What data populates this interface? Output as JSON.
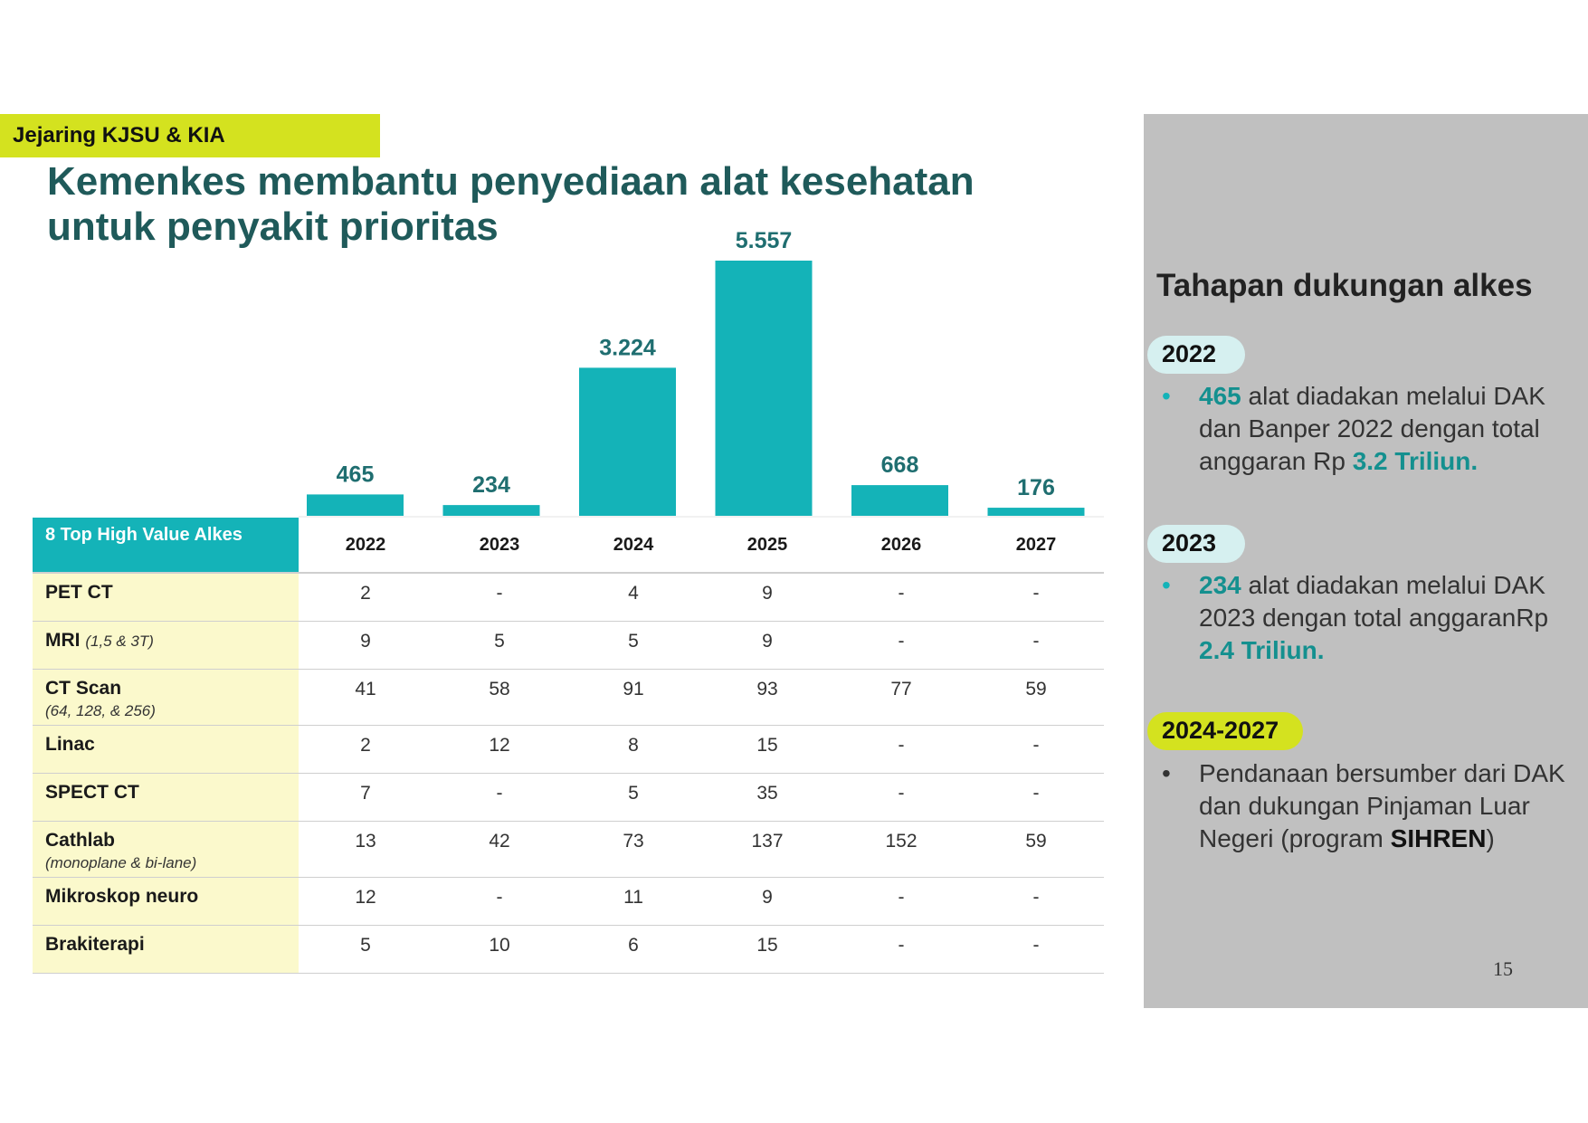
{
  "header": {
    "tag": "Jejaring KJSU & KIA",
    "title_line1": "Kemenkes membantu penyediaan alat kesehatan",
    "title_line2": "untuk penyakit prioritas"
  },
  "colors": {
    "bar": "#14b3b8",
    "accent_lime": "#d4e21f",
    "title_teal": "#1f5a5a",
    "side_panel": "#c0c0c0"
  },
  "chart_data": {
    "type": "bar",
    "categories": [
      "2022",
      "2023",
      "2024",
      "2025",
      "2026",
      "2027"
    ],
    "values": [
      465,
      234,
      3224,
      5557,
      668,
      176
    ],
    "value_labels": [
      "465",
      "234",
      "3.224",
      "5.557",
      "668",
      "176"
    ],
    "title": "",
    "xlabel": "",
    "ylabel": "",
    "ylim": [
      0,
      5557
    ],
    "grid": false,
    "legend": "none"
  },
  "table": {
    "corner": "8 Top High Value Alkes",
    "years": [
      "2022",
      "2023",
      "2024",
      "2025",
      "2026",
      "2027"
    ],
    "rows": [
      {
        "name": "PET CT",
        "sub": "",
        "values": [
          "2",
          "-",
          "4",
          "9",
          "-",
          "-"
        ]
      },
      {
        "name": "MRI",
        "sub": "(1,5 & 3T)",
        "values": [
          "9",
          "5",
          "5",
          "9",
          "-",
          "-"
        ]
      },
      {
        "name": "CT Scan",
        "sub": "(64, 128, & 256)",
        "values": [
          "41",
          "58",
          "91",
          "93",
          "77",
          "59"
        ]
      },
      {
        "name": "Linac",
        "sub": "",
        "values": [
          "2",
          "12",
          "8",
          "15",
          "-",
          "-"
        ]
      },
      {
        "name": "SPECT CT",
        "sub": "",
        "values": [
          "7",
          "-",
          "5",
          "35",
          "-",
          "-"
        ]
      },
      {
        "name": "Cathlab",
        "sub": "(monoplane & bi-lane)",
        "values": [
          "13",
          "42",
          "73",
          "137",
          "152",
          "59"
        ]
      },
      {
        "name": "Mikroskop neuro",
        "sub": "",
        "values": [
          "12",
          "-",
          "11",
          "9",
          "-",
          "-"
        ]
      },
      {
        "name": "Brakiterapi",
        "sub": "",
        "values": [
          "5",
          "10",
          "6",
          "15",
          "-",
          "-"
        ]
      }
    ]
  },
  "side": {
    "title": "Tahapan dukungan alkes",
    "stages": [
      {
        "year": "2022",
        "bullet": "•",
        "parts": [
          {
            "t": "465",
            "s": "hl"
          },
          {
            "t": " alat diadakan melalui DAK dan Banper 2022 dengan total anggaran Rp ",
            "s": ""
          },
          {
            "t": "3.2 Triliun.",
            "s": "hl"
          }
        ]
      },
      {
        "year": "2023",
        "bullet": "•",
        "parts": [
          {
            "t": "234",
            "s": "hl"
          },
          {
            "t": " alat diadakan melalui DAK 2023 dengan total anggaranRp ",
            "s": ""
          },
          {
            "t": "2.4 Triliun.",
            "s": "hl"
          }
        ]
      },
      {
        "year": "2024-2027",
        "bullet": "•",
        "parts": [
          {
            "t": "Pendanaan bersumber dari DAK dan dukungan Pinjaman Luar Negeri (program ",
            "s": ""
          },
          {
            "t": "SIHREN",
            "s": "strong"
          },
          {
            "t": ")",
            "s": ""
          }
        ]
      }
    ]
  },
  "page_number": "15"
}
